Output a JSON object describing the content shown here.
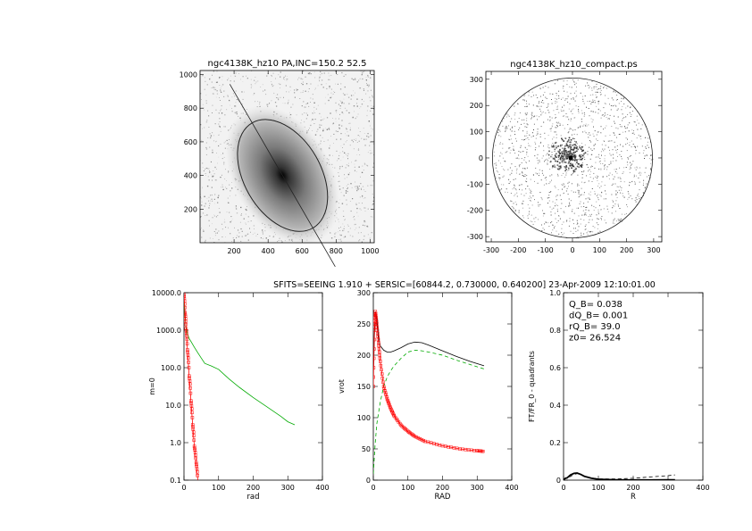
{
  "header": {
    "title": "SFITS=SEEING 1.910 + SERSIC=[60844.2, 0.730000, 0.640200]  23-Apr-2009 12:10:01.00"
  },
  "chart_data": [
    {
      "type": "image",
      "title": "ngc4138K_hz10 PA,INC=150.2 52.5",
      "xlim": [
        0,
        1024
      ],
      "ylim": [
        0,
        1024
      ],
      "xticks": [
        "200",
        "400",
        "600",
        "800",
        "1000"
      ],
      "yticks": [
        "200",
        "400",
        "600",
        "800",
        "1000"
      ],
      "ellipse": {
        "center": [
          485,
          400
        ],
        "pa_deg": 150.2,
        "inc_deg": 52.5
      }
    },
    {
      "type": "image",
      "title": "ngc4138K_hz10_compact.ps",
      "xlim": [
        -320,
        330
      ],
      "ylim": [
        -320,
        330
      ],
      "xticks": [
        "-300",
        "-200",
        "-100",
        "0",
        "100",
        "200",
        "300"
      ],
      "yticks": [
        "-300",
        "-200",
        "-100",
        "0",
        "100",
        "200",
        "300"
      ]
    },
    {
      "type": "line",
      "xlabel": "rad",
      "ylabel": "m=0",
      "xlim": [
        0,
        400
      ],
      "ylim": [
        0.1,
        10000
      ],
      "log_y": true,
      "xticks": [
        "0",
        "100",
        "200",
        "300",
        "400"
      ],
      "yticks": [
        "0.1",
        "1.0",
        "10.0",
        "100.0",
        "1000.0",
        "10000.0"
      ],
      "series": [
        {
          "color": "#00aa00",
          "x": [
            0,
            3,
            6,
            10,
            15,
            20,
            30,
            40,
            50,
            60,
            80,
            100,
            130,
            160,
            200,
            240,
            280,
            300,
            320
          ],
          "y": [
            6000,
            2200,
            1200,
            800,
            600,
            500,
            350,
            250,
            180,
            130,
            110,
            90,
            50,
            30,
            16,
            9,
            5,
            3.6,
            3
          ]
        },
        {
          "color": "#ff0000",
          "marker": "square",
          "x": [
            0,
            3,
            6,
            10,
            15,
            20,
            25,
            30,
            35,
            40
          ],
          "y": [
            9000,
            3000,
            1100,
            300,
            60,
            13,
            3,
            0.8,
            0.3,
            0.1
          ]
        }
      ]
    },
    {
      "type": "line",
      "xlabel": "RAD",
      "ylabel": "vrot",
      "xlim": [
        0,
        400
      ],
      "ylim": [
        0,
        300
      ],
      "xticks": [
        "0",
        "100",
        "200",
        "300",
        "400"
      ],
      "yticks": [
        "0",
        "50",
        "100",
        "150",
        "200",
        "250",
        "300"
      ],
      "series": [
        {
          "color": "#000000",
          "x": [
            0,
            3,
            6,
            10,
            15,
            20,
            30,
            40,
            50,
            60,
            80,
            100,
            120,
            140,
            160,
            200,
            240,
            280,
            320
          ],
          "y": [
            170,
            230,
            270,
            260,
            230,
            215,
            208,
            205,
            205,
            207,
            212,
            218,
            221,
            220,
            216,
            207,
            198,
            190,
            183
          ]
        },
        {
          "color": "#00aa00",
          "dashed": true,
          "x": [
            0,
            5,
            10,
            20,
            30,
            40,
            50,
            60,
            80,
            100,
            120,
            140,
            160,
            200,
            240,
            280,
            320
          ],
          "y": [
            10,
            55,
            90,
            125,
            150,
            165,
            175,
            183,
            195,
            205,
            208,
            207,
            205,
            200,
            192,
            185,
            178
          ]
        },
        {
          "color": "#ff0000",
          "marker": "square",
          "x": [
            0,
            3,
            6,
            10,
            15,
            20,
            30,
            40,
            50,
            60,
            80,
            100,
            120,
            150,
            200,
            250,
            300,
            320
          ],
          "y": [
            150,
            240,
            270,
            250,
            220,
            190,
            150,
            130,
            115,
            103,
            88,
            78,
            70,
            62,
            55,
            50,
            47,
            46
          ]
        }
      ]
    },
    {
      "type": "line",
      "xlabel": "R",
      "ylabel": "FT/FR_0 - quadrants",
      "xlim": [
        0,
        400
      ],
      "ylim": [
        0,
        1.0
      ],
      "xticks": [
        "0",
        "100",
        "200",
        "300",
        "400"
      ],
      "yticks": [
        "0",
        "0.2",
        "0.4",
        "0.6",
        "0.8",
        "1.0"
      ],
      "annotations": [
        "Q_B=  0.038",
        "dQ_B=  0.001",
        "rQ_B=  39.0",
        "z0= 26.524"
      ],
      "series": [
        {
          "color": "#000000",
          "thick": true,
          "x": [
            0,
            5,
            10,
            20,
            30,
            39,
            50,
            60,
            80,
            100,
            150,
            200,
            250,
            300,
            320
          ],
          "y": [
            0.002,
            0.01,
            0.012,
            0.028,
            0.036,
            0.038,
            0.03,
            0.02,
            0.01,
            0.005,
            0.002,
            0.001,
            0.001,
            0.002,
            0.002
          ]
        },
        {
          "color": "#000000",
          "dashed": true,
          "x": [
            0,
            10,
            20,
            30,
            40,
            50,
            60,
            80,
            100,
            150,
            200,
            250,
            300,
            320
          ],
          "y": [
            0.005,
            0.01,
            0.02,
            0.03,
            0.035,
            0.03,
            0.022,
            0.012,
            0.006,
            0.006,
            0.01,
            0.017,
            0.024,
            0.028
          ]
        }
      ]
    }
  ]
}
